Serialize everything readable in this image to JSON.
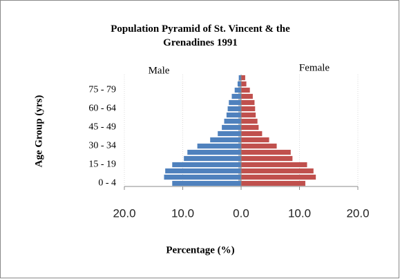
{
  "chart_data": {
    "type": "bar",
    "orientation": "horizontal",
    "title": "Population Pyramid of St. Vincent & the Grenadines 1991",
    "xlabel": "Percentage (%)",
    "ylabel": "Age Group (yrs)",
    "categories": [
      "0 - 4",
      null,
      null,
      "15 - 19",
      null,
      null,
      "30 - 34",
      null,
      null,
      "45 - 49",
      null,
      null,
      "60 - 64",
      null,
      null,
      "75 - 79",
      null,
      null
    ],
    "series": [
      {
        "name": "Male",
        "color": "#4f81bd",
        "values": [
          -11.8,
          -13.2,
          -13.0,
          -11.8,
          -9.8,
          -9.2,
          -7.5,
          -5.3,
          -4.0,
          -3.3,
          -2.9,
          -2.5,
          -2.3,
          -2.1,
          -1.6,
          -1.1,
          -0.6,
          -0.4
        ]
      },
      {
        "name": "Female",
        "color": "#c0504d",
        "values": [
          11.0,
          12.8,
          12.4,
          11.3,
          8.8,
          8.5,
          6.1,
          4.8,
          3.6,
          3.0,
          2.8,
          2.5,
          2.4,
          2.3,
          2.0,
          1.5,
          0.9,
          0.7
        ]
      }
    ],
    "xlim": [
      -20,
      20
    ],
    "xticks": [
      {
        "value": -20,
        "label": "20.0"
      },
      {
        "value": -10,
        "label": "10.0"
      },
      {
        "value": 0,
        "label": "0.0"
      },
      {
        "value": 10,
        "label": "10.0"
      },
      {
        "value": 20,
        "label": "20.0"
      }
    ],
    "grid": true
  }
}
